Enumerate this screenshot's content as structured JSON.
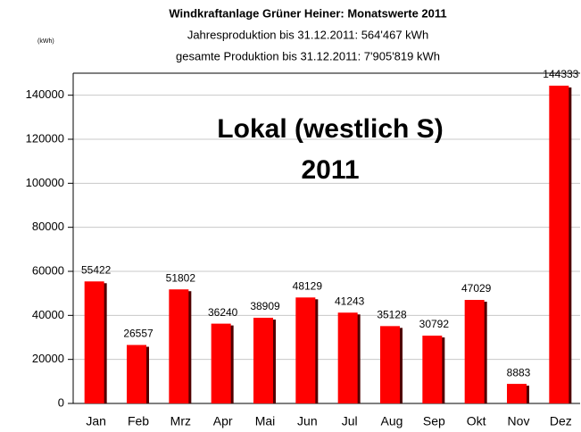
{
  "chart_data": {
    "type": "bar",
    "title": "Windkraftanlage Grüner Heiner: Monatswerte 2011",
    "subtitles": [
      "Jahresproduktion bis 31.12.2011:  564'467 kWh",
      "gesamte Produktion bis 31.12.2011:  7'905'819 kWh"
    ],
    "y_label": "(kWh)",
    "annotations": [
      "Lokal (westlich S)",
      "2011"
    ],
    "categories": [
      "Jan",
      "Feb",
      "Mrz",
      "Apr",
      "Mai",
      "Jun",
      "Jul",
      "Aug",
      "Sep",
      "Okt",
      "Nov",
      "Dez"
    ],
    "values": [
      55422,
      26557,
      51802,
      36240,
      38909,
      48129,
      41243,
      35128,
      30792,
      47029,
      8883,
      144333
    ],
    "color": "#ff0000",
    "ylim": [
      0,
      150000
    ],
    "yticks": [
      0,
      20000,
      40000,
      60000,
      80000,
      100000,
      120000,
      140000
    ],
    "grid": true
  }
}
